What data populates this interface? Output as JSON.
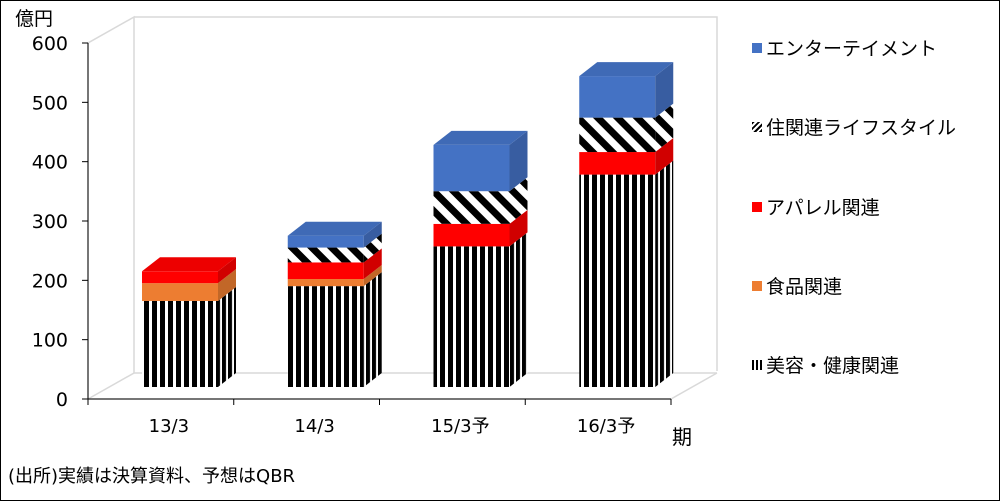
{
  "chart_data": {
    "type": "bar",
    "stacked": true,
    "three_d": true,
    "unit_label": "億円",
    "x_unit_label": "期",
    "categories": [
      "13/3",
      "14/3",
      "15/3予",
      "16/3予"
    ],
    "ylim": [
      0,
      600
    ],
    "yticks": [
      0,
      100,
      200,
      300,
      400,
      500,
      600
    ],
    "series": [
      {
        "name": "美容・健康関連",
        "values": [
          145,
          170,
          237,
          358
        ],
        "color": "#000000",
        "pattern": "vertical-stripes"
      },
      {
        "name": "食品関連",
        "values": [
          30,
          12,
          0,
          0
        ],
        "color": "#ed7d31",
        "pattern": "solid"
      },
      {
        "name": "アパレル関連",
        "values": [
          20,
          28,
          38,
          38
        ],
        "color": "#ff0000",
        "pattern": "solid"
      },
      {
        "name": "住関連ライフスタイル",
        "values": [
          0,
          25,
          55,
          58
        ],
        "color": "#000000",
        "pattern": "diagonal-stripes"
      },
      {
        "name": "エンターテイメント",
        "values": [
          0,
          20,
          78,
          70
        ],
        "color": "#4472c4",
        "pattern": "solid"
      }
    ],
    "legend_order": [
      "エンターテイメント",
      "住関連ライフスタイル",
      "アパレル関連",
      "食品関連",
      "美容・健康関連"
    ],
    "legend_position": "right"
  },
  "source_note": "(出所)実績は決算資料、予想はQBR"
}
